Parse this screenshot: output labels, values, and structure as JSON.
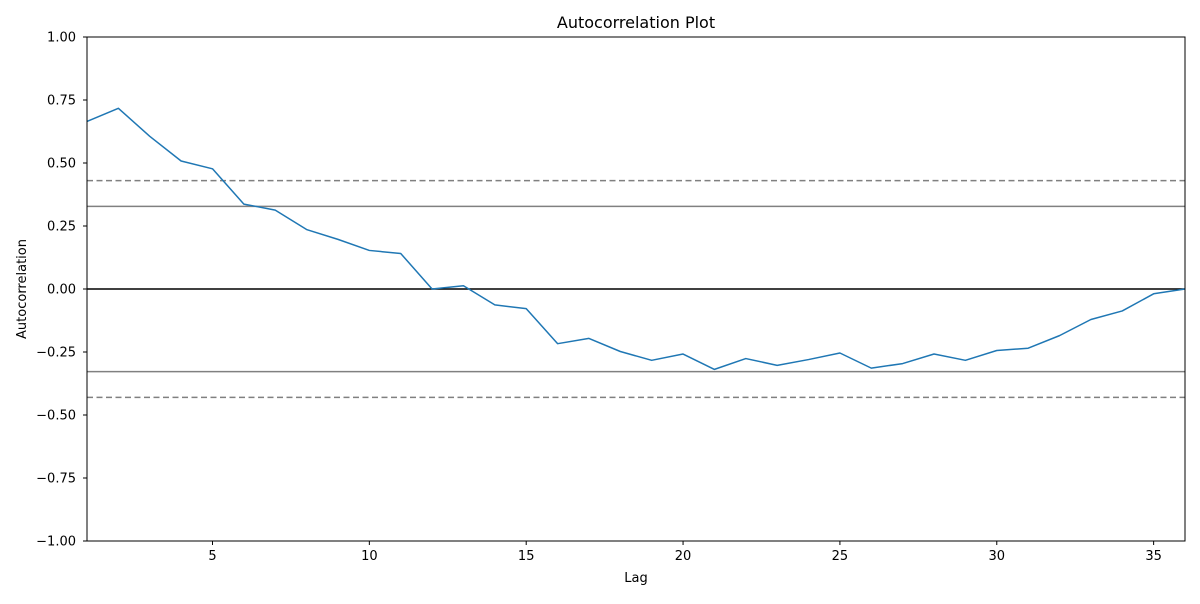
{
  "chart_data": {
    "type": "line",
    "title": "Autocorrelation Plot",
    "xlabel": "Lag",
    "ylabel": "Autocorrelation",
    "xlim": [
      1,
      36
    ],
    "ylim": [
      -1.0,
      1.0
    ],
    "xticks": [
      5,
      10,
      15,
      20,
      25,
      30,
      35
    ],
    "xtick_labels": [
      "5",
      "10",
      "15",
      "20",
      "25",
      "30",
      "35"
    ],
    "yticks": [
      1.0,
      0.75,
      0.5,
      0.25,
      0.0,
      -0.25,
      -0.5,
      -0.75,
      -1.0
    ],
    "ytick_labels": [
      "1.00",
      "0.75",
      "0.50",
      "0.25",
      "0.00",
      "−0.25",
      "−0.50",
      "−0.75",
      "−1.00"
    ],
    "grid": false,
    "series": [
      {
        "color": "#1f77b4",
        "x": [
          1,
          2,
          3,
          4,
          5,
          6,
          7,
          8,
          9,
          10,
          11,
          12,
          13,
          14,
          15,
          16,
          17,
          18,
          19,
          20,
          21,
          22,
          23,
          24,
          25,
          26,
          27,
          28,
          29,
          30,
          31,
          32,
          33,
          34,
          35,
          36
        ],
        "values": [
          0.665,
          0.717,
          0.606,
          0.508,
          0.477,
          0.337,
          0.313,
          0.236,
          0.197,
          0.153,
          0.141,
          0.0,
          0.013,
          -0.063,
          -0.078,
          -0.217,
          -0.196,
          -0.248,
          -0.283,
          -0.258,
          -0.319,
          -0.276,
          -0.303,
          -0.28,
          -0.254,
          -0.314,
          -0.296,
          -0.258,
          -0.283,
          -0.244,
          -0.235,
          -0.185,
          -0.121,
          -0.087,
          -0.019,
          0.0
        ]
      }
    ],
    "reference_lines": [
      {
        "value": 0.0,
        "color": "#000000",
        "style": "solid"
      },
      {
        "value": 0.328,
        "color": "#808080",
        "style": "solid"
      },
      {
        "value": -0.328,
        "color": "#808080",
        "style": "solid"
      },
      {
        "value": 0.43,
        "color": "#808080",
        "style": "dashed"
      },
      {
        "value": -0.43,
        "color": "#808080",
        "style": "dashed"
      }
    ]
  }
}
